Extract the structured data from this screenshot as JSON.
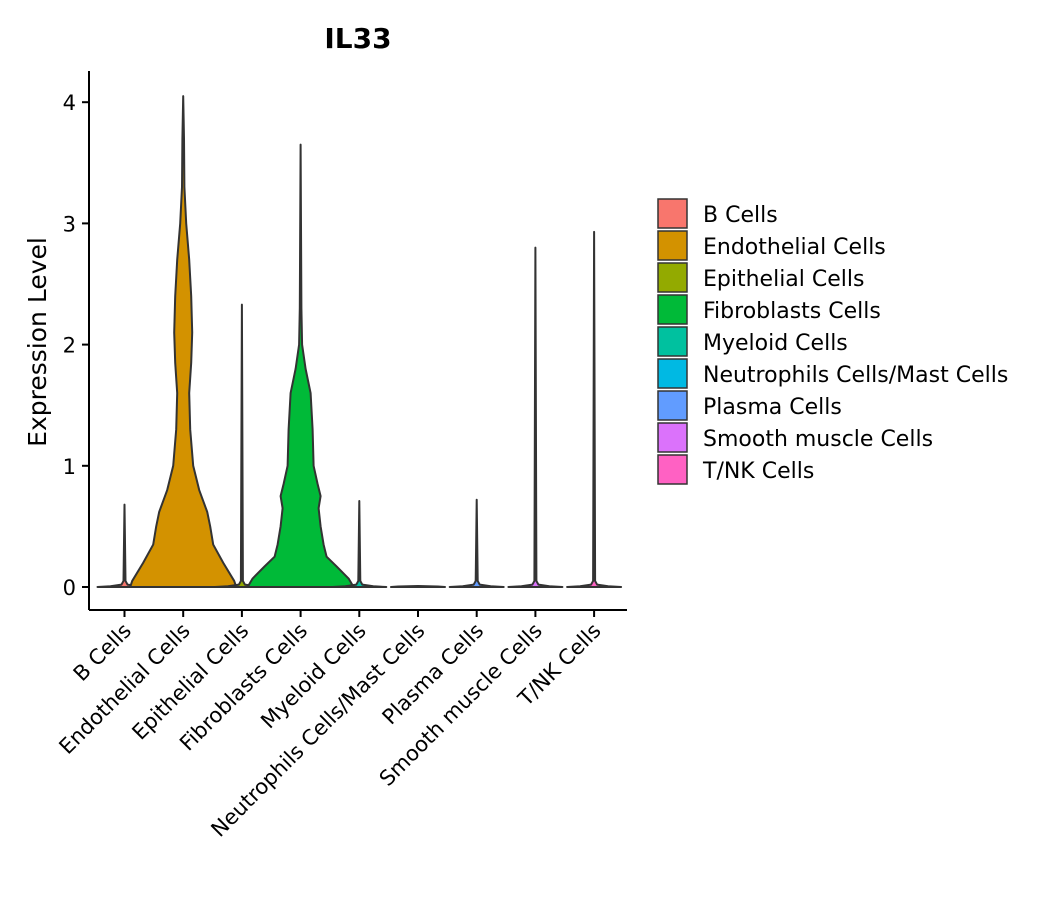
{
  "chart_data": {
    "type": "violin",
    "title": "IL33",
    "xlabel": "",
    "ylabel": "Expression Level",
    "ylim": [
      -0.2,
      4.25
    ],
    "yticks": [
      0,
      1,
      2,
      3,
      4
    ],
    "categories": [
      "B Cells",
      "Endothelial Cells",
      "Epithelial Cells",
      "Fibroblasts Cells",
      "Myeloid Cells",
      "Neutrophils Cells/Mast Cells",
      "Plasma Cells",
      "Smooth muscle Cells",
      "T/NK Cells"
    ],
    "colors": [
      "#F8766D",
      "#D39200",
      "#93AA00",
      "#00BA38",
      "#00C19F",
      "#00B9E3",
      "#619CFF",
      "#DB72FB",
      "#FF61C3"
    ],
    "max_values": [
      0.68,
      4.05,
      2.33,
      3.65,
      0.71,
      0.0,
      0.72,
      2.8,
      2.93
    ],
    "legend": {
      "position": "right",
      "entries": [
        "B Cells",
        "Endothelial Cells",
        "Epithelial Cells",
        "Fibroblasts Cells",
        "Myeloid Cells",
        "Neutrophils Cells/Mast Cells",
        "Plasma Cells",
        "Smooth muscle Cells",
        "T/NK Cells"
      ]
    },
    "grid": false
  }
}
